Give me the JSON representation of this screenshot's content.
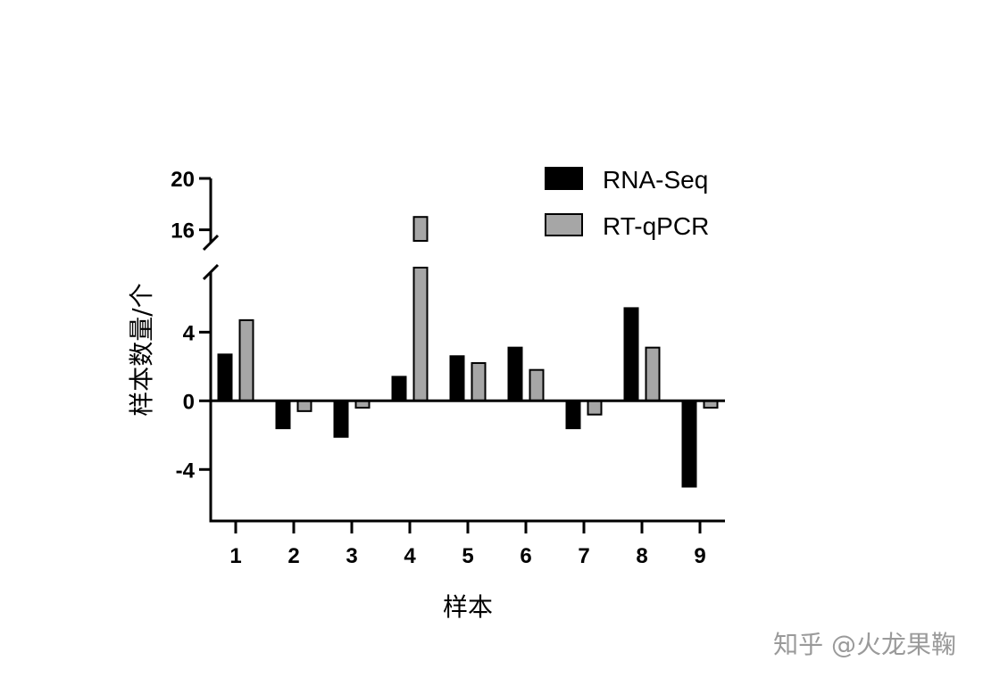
{
  "chart_data": {
    "type": "bar",
    "title": "",
    "xlabel": "样本",
    "ylabel": "样本数量/个",
    "categories": [
      "1",
      "2",
      "3",
      "4",
      "5",
      "6",
      "7",
      "8",
      "9"
    ],
    "series": [
      {
        "name": "RNA-Seq",
        "color": "#000000",
        "values": [
          2.7,
          -1.6,
          -2.1,
          1.4,
          2.6,
          3.1,
          -1.6,
          5.4,
          -5.0
        ]
      },
      {
        "name": "RT-qPCR",
        "color": "#a6a6a6",
        "values": [
          4.7,
          -0.6,
          -0.4,
          17.0,
          2.2,
          1.8,
          -0.8,
          3.1,
          -0.4
        ]
      }
    ],
    "y_axis": {
      "segments": [
        {
          "range": [
            -7,
            7.5
          ],
          "ticks": [
            -4,
            0,
            4
          ],
          "tick_labels": [
            "-4",
            "0",
            "4"
          ]
        },
        {
          "range": [
            15,
            20
          ],
          "ticks": [
            16,
            20
          ],
          "tick_labels": [
            "16",
            "20"
          ]
        }
      ],
      "break": [
        7.5,
        15
      ]
    },
    "legend_position": "top-right",
    "grid": false
  },
  "watermark": "知乎 @火龙果鞠"
}
